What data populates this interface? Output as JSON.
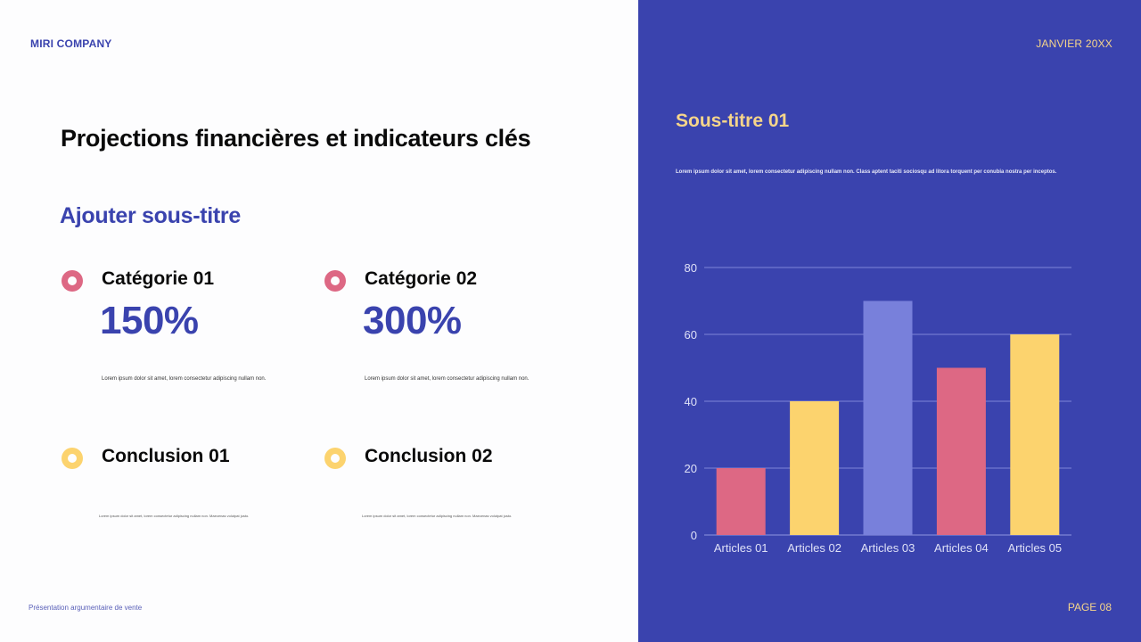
{
  "header": {
    "company": "MIRI COMPANY",
    "date": "JANVIER 20XX"
  },
  "main": {
    "title": "Projections financières et indicateurs clés",
    "subtitle": "Ajouter sous-titre",
    "cards": [
      {
        "label": "Catégorie 01",
        "value": "150%",
        "description": "Lorem ipsum dolor sit amet, lorem consectetur adipiscing nullam non.",
        "dot_color": "#dd6884"
      },
      {
        "label": "Catégorie 02",
        "value": "300%",
        "description": "Lorem ipsum dolor sit amet, lorem consectetur adipiscing nullam non.",
        "dot_color": "#dd6884"
      },
      {
        "label": "Conclusion 01",
        "value": "",
        "description": "Lorem ipsum dolor sit amet, lorem consectetur adipiscing nullam non. Maecenas volutpat justo.",
        "dot_color": "#fcd36e"
      },
      {
        "label": "Conclusion 02",
        "value": "",
        "description": "Lorem ipsum dolor sit amet, lorem consectetur adipiscing nullam non. Maecenas volutpat justo.",
        "dot_color": "#fcd36e"
      }
    ]
  },
  "right_panel": {
    "title": "Sous-titre 01",
    "text": "Lorem ipsum dolor sit amet, lorem consectetur adipiscing nullam non. Class aptent taciti sociosqu ad litora torquent per conubia nostra per inceptos."
  },
  "footer": {
    "left": "Présentation argumentaire de vente",
    "page": "PAGE 08"
  },
  "colors": {
    "accent": "#3a43ae",
    "yellow": "#fcd36e",
    "pink": "#dd6884",
    "lavender": "#7880db",
    "gold_text": "#f6d58a"
  },
  "chart_data": {
    "type": "bar",
    "title": "",
    "xlabel": "",
    "ylabel": "",
    "categories": [
      "Articles 01",
      "Articles 02",
      "Articles 03",
      "Articles 04",
      "Articles 05"
    ],
    "values": [
      20,
      40,
      70,
      50,
      60
    ],
    "bar_colors": [
      "#dd6884",
      "#fcd36e",
      "#7880db",
      "#dd6884",
      "#fcd36e"
    ],
    "yticks": [
      0,
      20,
      40,
      60,
      80
    ],
    "ylim": [
      0,
      80
    ],
    "grid": true,
    "legend": "none"
  }
}
